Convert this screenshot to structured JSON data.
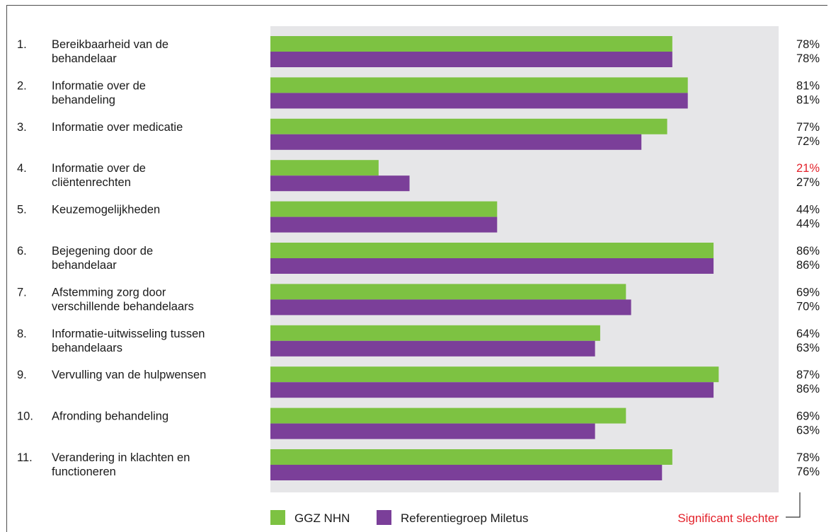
{
  "chart_data": {
    "type": "bar",
    "orientation": "horizontal",
    "xlim": [
      0,
      100
    ],
    "grid": false,
    "legend_position": "bottom",
    "categories": [
      {
        "num": "1.",
        "lines": [
          "Bereikbaarheid van de",
          "behandelaar"
        ]
      },
      {
        "num": "2.",
        "lines": [
          "Informatie over de",
          "behandeling"
        ]
      },
      {
        "num": "3.",
        "lines": [
          "Informatie over medicatie"
        ]
      },
      {
        "num": "4.",
        "lines": [
          "Informatie over de",
          "cliëntenrechten"
        ]
      },
      {
        "num": "5.",
        "lines": [
          "Keuzemogelijkheden"
        ]
      },
      {
        "num": "6.",
        "lines": [
          "Bejegening door de",
          "behandelaar"
        ]
      },
      {
        "num": "7.",
        "lines": [
          "Afstemming zorg door",
          "verschillende behandelaars"
        ]
      },
      {
        "num": "8.",
        "lines": [
          "Informatie-uitwisseling tussen",
          "behandelaars"
        ]
      },
      {
        "num": "9.",
        "lines": [
          "Vervulling van de hulpwensen"
        ]
      },
      {
        "num": "10.",
        "lines": [
          "Afronding behandeling"
        ]
      },
      {
        "num": "11.",
        "lines": [
          "Verandering in klachten en",
          "functioneren"
        ]
      }
    ],
    "series": [
      {
        "name": "GGZ NHN",
        "color": "#7dc242",
        "values": [
          78,
          81,
          77,
          21,
          44,
          86,
          69,
          64,
          87,
          69,
          78
        ],
        "labels": [
          "78%",
          "81%",
          "77%",
          "21%",
          "44%",
          "86%",
          "69%",
          "64%",
          "87%",
          "69%",
          "78%"
        ],
        "significant_worse": [
          false,
          false,
          false,
          true,
          false,
          false,
          false,
          false,
          false,
          false,
          false
        ]
      },
      {
        "name": "Referentiegroep Miletus",
        "color": "#7b3f99",
        "values": [
          78,
          81,
          72,
          27,
          44,
          86,
          70,
          63,
          86,
          63,
          76
        ],
        "labels": [
          "78%",
          "81%",
          "72%",
          "27%",
          "44%",
          "86%",
          "70%",
          "63%",
          "86%",
          "63%",
          "76%"
        ],
        "significant_worse": [
          false,
          false,
          false,
          false,
          false,
          false,
          false,
          false,
          false,
          false,
          false
        ]
      }
    ],
    "annotation": {
      "text": "Significant slechter",
      "color": "#e3222b"
    },
    "colors": {
      "plot_background": "#e6e6e8",
      "text": "#1a1a1a",
      "significant": "#e3222b"
    }
  }
}
